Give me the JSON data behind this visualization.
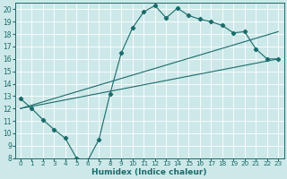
{
  "xlabel": "Humidex (Indice chaleur)",
  "bg_color": "#cde8e8",
  "line_color": "#1a6b6b",
  "grid_color": "#ffffff",
  "xlim": [
    -0.5,
    23.5
  ],
  "ylim": [
    8,
    20.5
  ],
  "xticks": [
    0,
    1,
    2,
    3,
    4,
    5,
    6,
    7,
    8,
    9,
    10,
    11,
    12,
    13,
    14,
    15,
    16,
    17,
    18,
    19,
    20,
    21,
    22,
    23
  ],
  "yticks": [
    8,
    9,
    10,
    11,
    12,
    13,
    14,
    15,
    16,
    17,
    18,
    19,
    20
  ],
  "series1_x": [
    0,
    1,
    2,
    3,
    4,
    5,
    6,
    7,
    8,
    9,
    10,
    11,
    12,
    13,
    14,
    15,
    16,
    17,
    18,
    19,
    20,
    21,
    22,
    23
  ],
  "series1_y": [
    12.8,
    12.0,
    11.1,
    10.3,
    9.6,
    8.0,
    7.8,
    9.5,
    13.2,
    16.5,
    18.5,
    19.8,
    20.3,
    19.3,
    20.1,
    19.5,
    19.2,
    19.0,
    18.7,
    18.1,
    18.2,
    16.8,
    16.0,
    16.0
  ],
  "line2_x": [
    0,
    23
  ],
  "line2_y": [
    12.0,
    18.2
  ],
  "line3_x": [
    0,
    23
  ],
  "line3_y": [
    12.0,
    16.0
  ]
}
